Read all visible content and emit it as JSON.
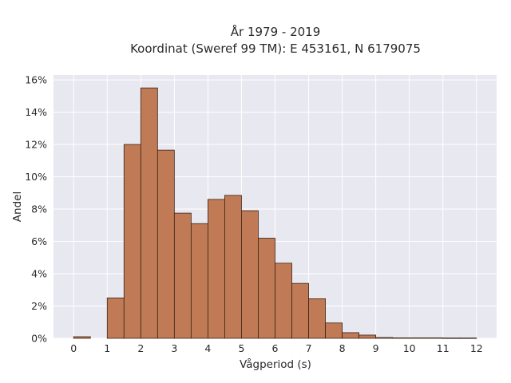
{
  "chart_data": {
    "type": "bar",
    "title_line1": "År 1979 - 2019",
    "title_line2": "Koordinat (Sweref 99 TM): E 453161, N 6179075",
    "xlabel": "Vågperiod (s)",
    "ylabel": "Andel",
    "xlim": [
      -0.6,
      12.6
    ],
    "ylim": [
      0,
      16.3
    ],
    "x_ticks": [
      0,
      1,
      2,
      3,
      4,
      5,
      6,
      7,
      8,
      9,
      10,
      11,
      12
    ],
    "y_ticks": [
      0,
      2,
      4,
      6,
      8,
      10,
      12,
      14,
      16
    ],
    "y_tick_labels": [
      "0%",
      "2%",
      "4%",
      "6%",
      "8%",
      "10%",
      "12%",
      "14%",
      "16%"
    ],
    "bin_width": 0.5,
    "bins": [
      {
        "x": 0.0,
        "value": 0.1
      },
      {
        "x": 0.5,
        "value": 0.0
      },
      {
        "x": 1.0,
        "value": 2.5
      },
      {
        "x": 1.5,
        "value": 12.0
      },
      {
        "x": 2.0,
        "value": 15.5
      },
      {
        "x": 2.5,
        "value": 11.65
      },
      {
        "x": 3.0,
        "value": 7.75
      },
      {
        "x": 3.5,
        "value": 7.1
      },
      {
        "x": 4.0,
        "value": 8.6
      },
      {
        "x": 4.5,
        "value": 8.85
      },
      {
        "x": 5.0,
        "value": 7.9
      },
      {
        "x": 5.5,
        "value": 6.2
      },
      {
        "x": 6.0,
        "value": 4.65
      },
      {
        "x": 6.5,
        "value": 3.4
      },
      {
        "x": 7.0,
        "value": 2.45
      },
      {
        "x": 7.5,
        "value": 0.95
      },
      {
        "x": 8.0,
        "value": 0.35
      },
      {
        "x": 8.5,
        "value": 0.2
      },
      {
        "x": 9.0,
        "value": 0.05
      },
      {
        "x": 9.5,
        "value": 0.03
      },
      {
        "x": 10.0,
        "value": 0.03
      },
      {
        "x": 10.5,
        "value": 0.03
      },
      {
        "x": 11.0,
        "value": 0.02
      },
      {
        "x": 11.5,
        "value": 0.02
      }
    ],
    "grid": true,
    "colors": {
      "bar_fill": "#c07a55",
      "bar_edge": "#3a2418",
      "plot_bg": "#e8e8f0",
      "grid": "#ffffff"
    }
  }
}
